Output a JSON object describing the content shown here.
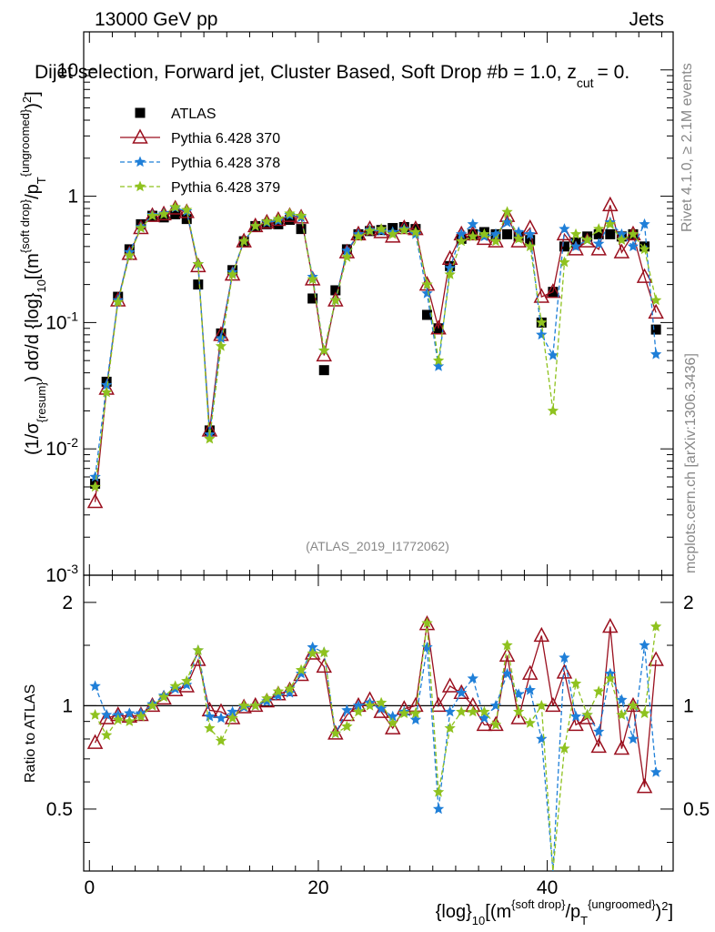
{
  "header": {
    "energy": "13000 GeV pp",
    "process": "Jets",
    "title": "Dijet selection, Forward jet, Cluster Based, Soft Drop #b = 1.0, z_cut = 0.",
    "title_main": "Dijet selection, Forward jet, Cluster Based, Soft Drop #b = 1.0, z",
    "title_sub": "cut",
    "title_end": "= 0.",
    "rivet": "Rivet 4.1.0, ≥ 2.1M events",
    "mcplots": "mcplots.cern.ch [arXiv:1306.3436]",
    "analysis": "(ATLAS_2019_I1772062)"
  },
  "labels": {
    "ylabel_top": "(1/σ_{resum}) dσ/d {log}_10[(m^{soft drop}/p_T^{ungroomed})^2]",
    "ylabel_bottom": "Ratio to ATLAS",
    "xlabel": "{log}_10[(m^{soft drop}/p_T^{ungroomed})^2]"
  },
  "legend": [
    {
      "name": "ATLAS",
      "color": "#000000",
      "marker": "square"
    },
    {
      "name": "Pythia 6.428 370",
      "color": "#9a0f1e",
      "marker": "triangle"
    },
    {
      "name": "Pythia 6.428 378",
      "color": "#1f7fd8",
      "marker": "star"
    },
    {
      "name": "Pythia 6.428 379",
      "color": "#8fc21f",
      "marker": "star"
    }
  ],
  "chart_data": {
    "type": "line",
    "xlim": [
      -0.5,
      51
    ],
    "ylim_top": [
      0.001,
      20
    ],
    "ylim_ratio": [
      0.33,
      2.4
    ],
    "x_ticks": [
      "0",
      "20",
      "40"
    ],
    "y_ticks_top": [
      "10^-3",
      "10^-2",
      "10^-1",
      "1",
      "10"
    ],
    "y_ticks_ratio": [
      "0.5",
      "1",
      "2"
    ],
    "x": [
      0.5,
      1.5,
      2.5,
      3.5,
      4.5,
      5.5,
      6.5,
      7.5,
      8.5,
      9.5,
      10.5,
      11.5,
      12.5,
      13.5,
      14.5,
      15.5,
      16.5,
      17.5,
      18.5,
      19.5,
      20.5,
      21.5,
      22.5,
      23.5,
      24.5,
      25.5,
      26.5,
      27.5,
      28.5,
      29.5,
      30.5,
      31.5,
      32.5,
      33.5,
      34.5,
      35.5,
      36.5,
      37.5,
      38.5,
      39.5,
      40.5,
      41.5,
      42.5,
      43.5,
      44.5,
      45.5,
      46.5,
      47.5,
      48.5,
      49.5
    ],
    "series": [
      {
        "name": "ATLAS",
        "values": [
          0.0053,
          0.034,
          0.16,
          0.38,
          0.6,
          0.7,
          0.68,
          0.72,
          0.66,
          0.2,
          0.014,
          0.082,
          0.26,
          0.44,
          0.58,
          0.6,
          0.6,
          0.65,
          0.55,
          0.155,
          0.042,
          0.18,
          0.38,
          0.5,
          0.53,
          0.54,
          0.56,
          0.57,
          0.55,
          0.115,
          0.09,
          0.28,
          0.46,
          0.5,
          0.52,
          0.5,
          0.5,
          0.48,
          0.45,
          0.1,
          0.175,
          0.4,
          0.43,
          0.48,
          0.5,
          0.5,
          0.48,
          0.5,
          0.4,
          0.088
        ]
      },
      {
        "name": "Pythia 6.428 370",
        "values": [
          0.0038,
          0.03,
          0.15,
          0.35,
          0.56,
          0.7,
          0.72,
          0.8,
          0.75,
          0.28,
          0.014,
          0.08,
          0.24,
          0.44,
          0.58,
          0.62,
          0.65,
          0.7,
          0.68,
          0.22,
          0.055,
          0.15,
          0.36,
          0.5,
          0.55,
          0.52,
          0.48,
          0.56,
          0.55,
          0.2,
          0.09,
          0.32,
          0.5,
          0.5,
          0.46,
          0.44,
          0.7,
          0.44,
          0.56,
          0.16,
          0.175,
          0.5,
          0.38,
          0.44,
          0.38,
          0.85,
          0.36,
          0.5,
          0.23,
          0.12
        ]
      },
      {
        "name": "Pythia 6.428 378",
        "values": [
          0.006,
          0.032,
          0.15,
          0.36,
          0.57,
          0.71,
          0.73,
          0.81,
          0.76,
          0.29,
          0.013,
          0.075,
          0.25,
          0.44,
          0.58,
          0.62,
          0.64,
          0.71,
          0.68,
          0.23,
          0.06,
          0.15,
          0.37,
          0.5,
          0.54,
          0.53,
          0.52,
          0.55,
          0.5,
          0.17,
          0.045,
          0.27,
          0.5,
          0.6,
          0.48,
          0.5,
          0.62,
          0.52,
          0.5,
          0.08,
          0.055,
          0.55,
          0.4,
          0.45,
          0.42,
          0.62,
          0.5,
          0.4,
          0.6,
          0.056
        ]
      },
      {
        "name": "Pythia 6.428 379",
        "values": [
          0.005,
          0.028,
          0.145,
          0.34,
          0.56,
          0.7,
          0.72,
          0.82,
          0.78,
          0.29,
          0.012,
          0.065,
          0.24,
          0.44,
          0.58,
          0.63,
          0.66,
          0.73,
          0.7,
          0.22,
          0.06,
          0.15,
          0.33,
          0.48,
          0.53,
          0.55,
          0.5,
          0.54,
          0.52,
          0.2,
          0.05,
          0.24,
          0.44,
          0.48,
          0.5,
          0.44,
          0.75,
          0.46,
          0.4,
          0.1,
          0.02,
          0.3,
          0.5,
          0.45,
          0.55,
          0.6,
          0.45,
          0.5,
          0.38,
          0.15
        ]
      }
    ],
    "ratio_series": [
      {
        "name": "Pythia 6.428 370",
        "values": [
          0.78,
          0.92,
          0.94,
          0.93,
          0.94,
          1.0,
          1.05,
          1.11,
          1.14,
          1.36,
          0.97,
          0.96,
          0.92,
          0.99,
          1.0,
          1.03,
          1.08,
          1.11,
          1.23,
          1.42,
          1.3,
          0.83,
          0.94,
          1.0,
          1.04,
          0.96,
          0.86,
          0.98,
          1.0,
          1.73,
          1.0,
          1.14,
          1.09,
          1.0,
          0.88,
          0.88,
          1.4,
          0.92,
          1.24,
          1.6,
          1.0,
          1.25,
          0.88,
          0.92,
          0.76,
          1.7,
          0.75,
          1.0,
          0.58,
          1.36
        ]
      },
      {
        "name": "Pythia 6.428 378",
        "values": [
          1.14,
          0.94,
          0.94,
          0.95,
          0.95,
          1.01,
          1.07,
          1.12,
          1.15,
          1.45,
          0.93,
          0.92,
          0.96,
          0.99,
          1.0,
          1.03,
          1.07,
          1.09,
          1.24,
          1.48,
          1.43,
          0.83,
          0.97,
          1.0,
          1.02,
          0.98,
          0.93,
          0.96,
          0.91,
          1.48,
          0.5,
          0.96,
          1.09,
          1.2,
          0.92,
          1.0,
          1.24,
          1.08,
          1.11,
          0.8,
          0.31,
          1.38,
          0.93,
          0.94,
          0.84,
          1.24,
          1.04,
          0.8,
          1.5,
          0.64
        ]
      },
      {
        "name": "Pythia 6.428 379",
        "values": [
          0.94,
          0.82,
          0.91,
          0.9,
          0.93,
          1.0,
          1.06,
          1.14,
          1.18,
          1.45,
          0.86,
          0.79,
          0.92,
          1.0,
          1.0,
          1.05,
          1.1,
          1.12,
          1.27,
          1.42,
          1.43,
          0.83,
          0.87,
          0.96,
          1.0,
          1.02,
          0.89,
          0.95,
          0.95,
          1.74,
          0.56,
          0.86,
          0.96,
          0.96,
          0.96,
          0.88,
          1.5,
          0.96,
          0.89,
          1.0,
          0.11,
          0.75,
          1.16,
          0.94,
          1.1,
          1.2,
          0.94,
          1.0,
          0.95,
          1.7
        ]
      }
    ]
  }
}
